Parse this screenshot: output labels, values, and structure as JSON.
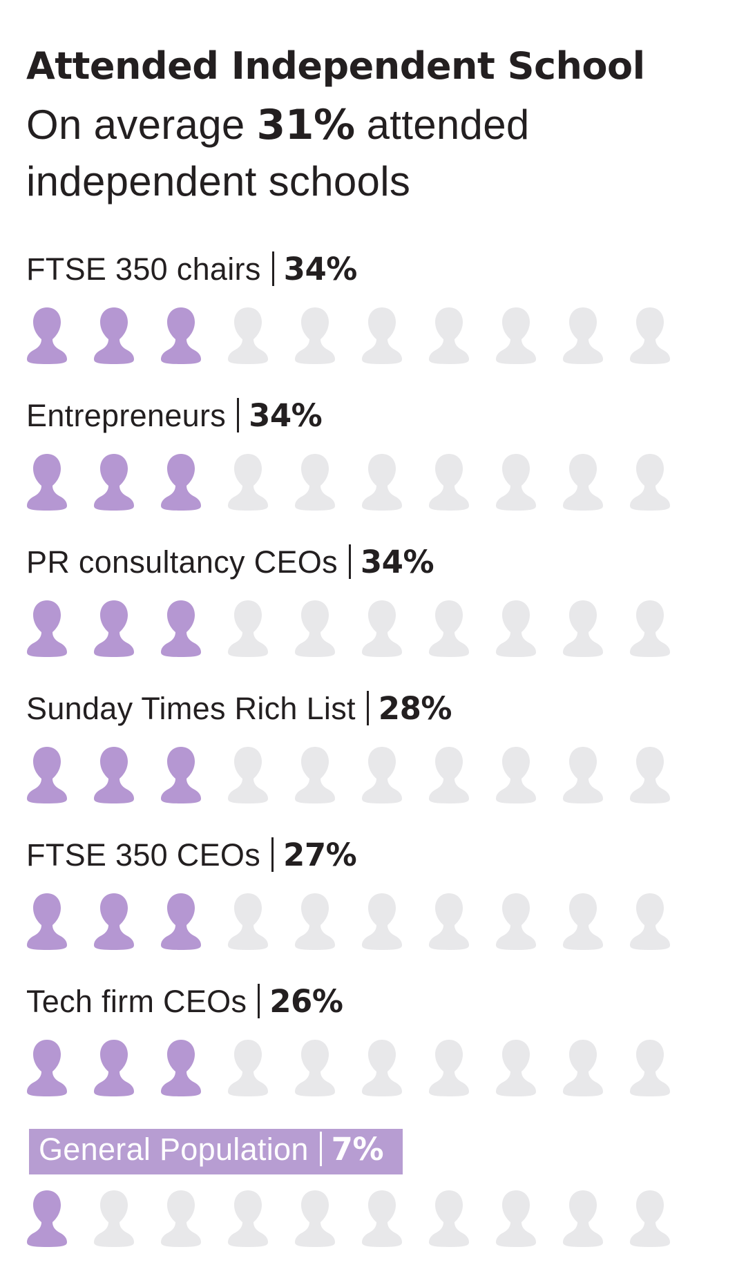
{
  "colors": {
    "filled": "#b597d2",
    "empty": "#e8e8ea",
    "highlight_bg": "#b79dd2",
    "text": "#231f20"
  },
  "icon_name": "person-icon",
  "chart_data": {
    "type": "pictogram",
    "title": "Attended Independent School",
    "subtitle": {
      "prefix": "On average ",
      "value": "31%",
      "suffix": " attended independent schools"
    },
    "icons_per_row": 10,
    "rows": [
      {
        "label": "FTSE 350 chairs",
        "value_label": "34%",
        "value": 34,
        "filled_icons": 3,
        "highlight": false
      },
      {
        "label": "Entrepreneurs",
        "value_label": "34%",
        "value": 34,
        "filled_icons": 3,
        "highlight": false
      },
      {
        "label": "PR consultancy CEOs",
        "value_label": "34%",
        "value": 34,
        "filled_icons": 3,
        "highlight": false
      },
      {
        "label": "Sunday Times Rich List",
        "value_label": "28%",
        "value": 28,
        "filled_icons": 3,
        "highlight": false
      },
      {
        "label": "FTSE 350 CEOs",
        "value_label": "27%",
        "value": 27,
        "filled_icons": 3,
        "highlight": false
      },
      {
        "label": "Tech firm CEOs",
        "value_label": "26%",
        "value": 26,
        "filled_icons": 3,
        "highlight": false
      },
      {
        "label": "General Population",
        "value_label": "7%",
        "value": 7,
        "filled_icons": 1,
        "highlight": true
      }
    ]
  }
}
